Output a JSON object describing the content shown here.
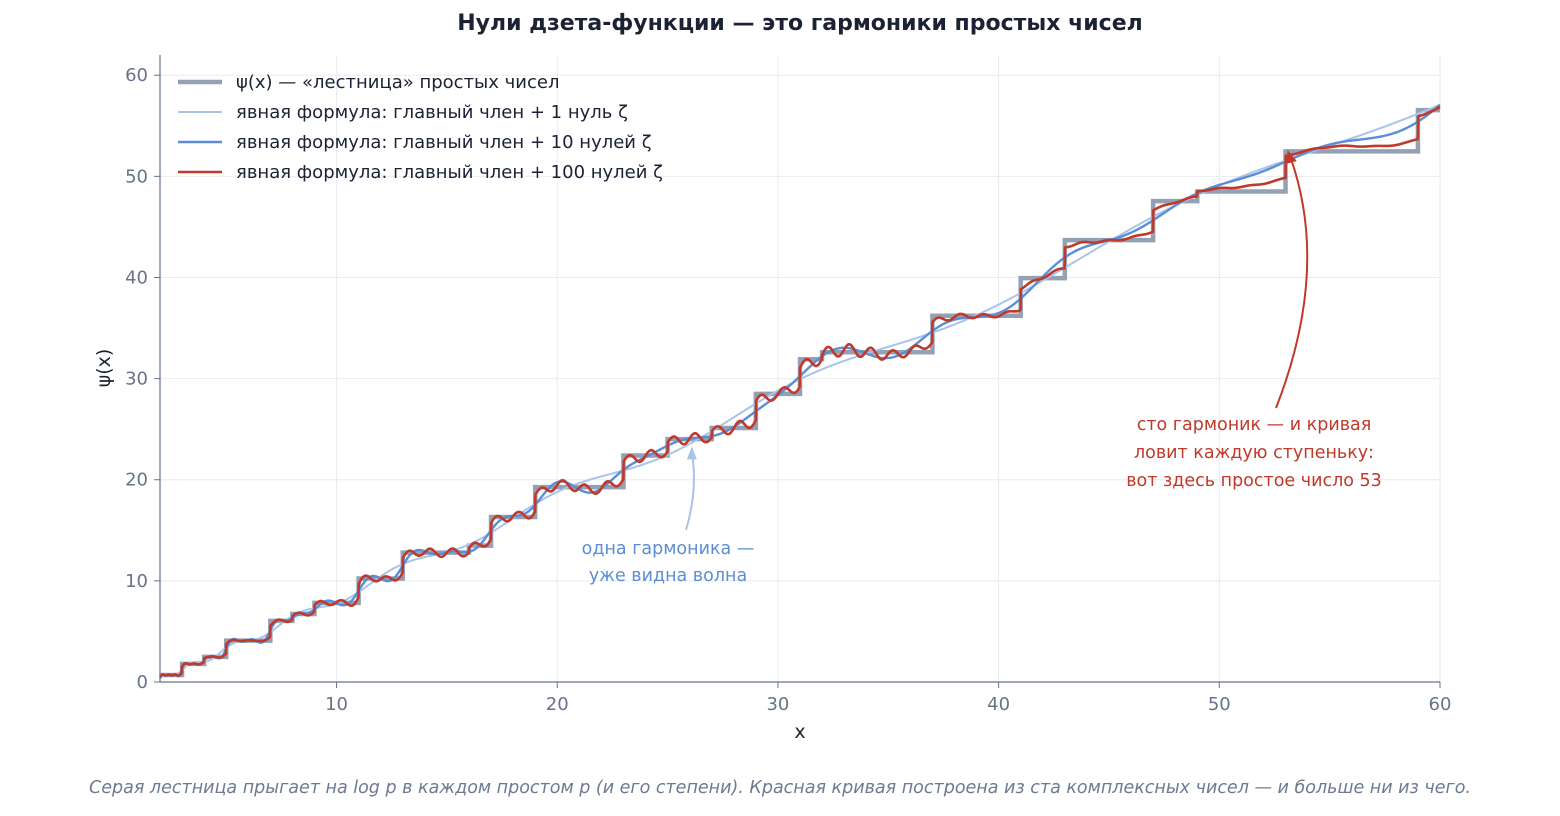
{
  "chart_data": {
    "type": "line",
    "title": "Нули дзета-функции — это гармоники простых чисел",
    "xlabel": "x",
    "ylabel": "ψ(x)",
    "xlim": [
      2,
      60
    ],
    "ylim": [
      0,
      62
    ],
    "xticks": [
      10,
      20,
      30,
      40,
      50,
      60
    ],
    "yticks": [
      0,
      10,
      20,
      30,
      40,
      50,
      60
    ],
    "grid": true,
    "legend_position": "top-left",
    "series": [
      {
        "name": "ψ(x) — «лестница» простых чисел",
        "color": "#94a0b4",
        "style": "step",
        "x": [
          2,
          3,
          4,
          5,
          7,
          8,
          9,
          11,
          13,
          16,
          17,
          19,
          23,
          25,
          27,
          29,
          31,
          32,
          37,
          41,
          43,
          47,
          49,
          53,
          59,
          60
        ],
        "y": [
          0.69,
          1.79,
          2.48,
          4.09,
          6.04,
          6.73,
          7.83,
          10.23,
          12.79,
          13.49,
          16.32,
          19.27,
          22.4,
          24.02,
          25.12,
          28.49,
          31.92,
          32.61,
          36.22,
          39.94,
          43.7,
          47.55,
          48.5,
          52.47,
          56.55,
          56.55
        ]
      },
      {
        "name": "явная формула: главный член + 1 нуль ζ",
        "color": "#a8c4e8",
        "n_zeros": 1
      },
      {
        "name": "явная формула: главный член + 10 нулей ζ",
        "color": "#5b8ed6",
        "n_zeros": 10
      },
      {
        "name": "явная формула: главный член + 100 нулей ζ",
        "color": "#c0392b",
        "n_zeros": 100
      }
    ],
    "annotations": [
      {
        "text": [
          "одна гармоника —",
          "уже видна волна"
        ],
        "color": "#5b8ed6",
        "points_to": [
          26.1,
          23.3
        ]
      },
      {
        "text": [
          "сто гармоник — и кривая",
          "ловит каждую ступеньку:",
          "вот здесь простое число 53"
        ],
        "color": "#c0392b",
        "points_to": [
          53.1,
          52.6
        ]
      }
    ]
  },
  "caption": "Серая лестница прыгает на log p в каждом простом p (и его степени). Красная кривая построена из ста комплексных чисел — и больше ни из чего."
}
